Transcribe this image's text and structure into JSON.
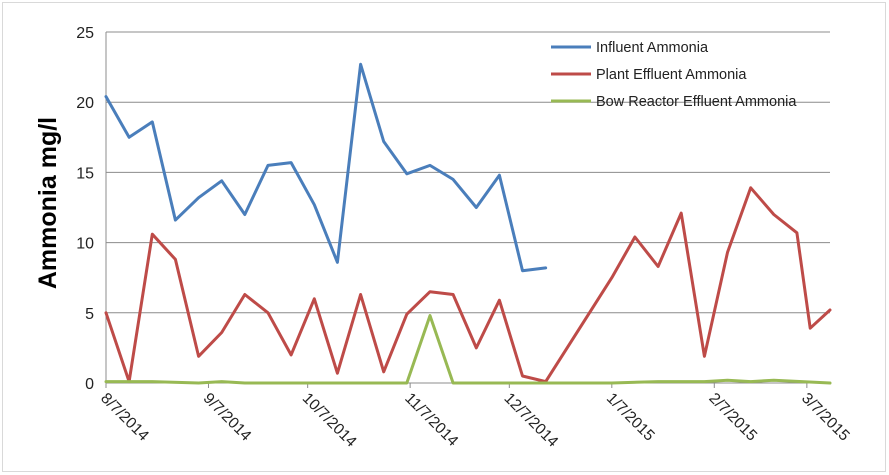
{
  "chart_data": {
    "type": "line",
    "ylabel": "Ammonia mg/l",
    "xlabel": "",
    "ylim": [
      0,
      25
    ],
    "y_ticks": [
      0,
      5,
      10,
      15,
      20,
      25
    ],
    "x_range": [
      "2014-08-07",
      "2015-03-14"
    ],
    "x_tick_dates": [
      "2014-08-07",
      "2014-09-07",
      "2014-10-07",
      "2014-11-07",
      "2014-12-07",
      "2015-01-07",
      "2015-02-07",
      "2015-03-07"
    ],
    "x_tick_labels": [
      "8/7/2014",
      "9/7/2014",
      "10/7/2014",
      "11/7/2014",
      "12/7/2014",
      "1/7/2015",
      "2/7/2015",
      "3/7/2015"
    ],
    "grid": "horizontal",
    "legend_position": "top-right",
    "series": [
      {
        "name": "Influent Ammonia",
        "color": "#4a7ebb",
        "points": [
          [
            "2014-08-07",
            20.4
          ],
          [
            "2014-08-14",
            17.5
          ],
          [
            "2014-08-21",
            18.6
          ],
          [
            "2014-08-28",
            11.6
          ],
          [
            "2014-09-04",
            13.2
          ],
          [
            "2014-09-11",
            14.4
          ],
          [
            "2014-09-18",
            12.0
          ],
          [
            "2014-09-25",
            15.5
          ],
          [
            "2014-10-02",
            15.7
          ],
          [
            "2014-10-09",
            12.7
          ],
          [
            "2014-10-16",
            8.6
          ],
          [
            "2014-10-23",
            22.7
          ],
          [
            "2014-10-30",
            17.2
          ],
          [
            "2014-11-06",
            14.9
          ],
          [
            "2014-11-13",
            15.5
          ],
          [
            "2014-11-20",
            14.5
          ],
          [
            "2014-11-27",
            12.5
          ],
          [
            "2014-12-04",
            14.8
          ],
          [
            "2014-12-11",
            8.0
          ],
          [
            "2014-12-18",
            8.2
          ]
        ]
      },
      {
        "name": "Plant Effluent Ammonia",
        "color": "#be4b48",
        "points": [
          [
            "2014-08-07",
            5.0
          ],
          [
            "2014-08-14",
            0.1
          ],
          [
            "2014-08-21",
            10.6
          ],
          [
            "2014-08-28",
            8.8
          ],
          [
            "2014-09-04",
            1.9
          ],
          [
            "2014-09-11",
            3.6
          ],
          [
            "2014-09-18",
            6.3
          ],
          [
            "2014-09-25",
            5.0
          ],
          [
            "2014-10-02",
            2.0
          ],
          [
            "2014-10-09",
            6.0
          ],
          [
            "2014-10-16",
            0.7
          ],
          [
            "2014-10-23",
            6.3
          ],
          [
            "2014-10-30",
            0.8
          ],
          [
            "2014-11-06",
            4.9
          ],
          [
            "2014-11-13",
            6.5
          ],
          [
            "2014-11-20",
            6.3
          ],
          [
            "2014-11-27",
            2.5
          ],
          [
            "2014-12-04",
            5.9
          ],
          [
            "2014-12-11",
            0.5
          ],
          [
            "2014-12-18",
            0.1
          ],
          [
            "2015-01-07",
            7.5
          ],
          [
            "2015-01-14",
            10.4
          ],
          [
            "2015-01-21",
            8.3
          ],
          [
            "2015-01-28",
            12.1
          ],
          [
            "2015-02-04",
            1.9
          ],
          [
            "2015-02-11",
            9.3
          ],
          [
            "2015-02-18",
            13.9
          ],
          [
            "2015-02-25",
            12.0
          ],
          [
            "2015-03-04",
            10.7
          ],
          [
            "2015-03-08",
            3.9
          ],
          [
            "2015-03-14",
            5.2
          ]
        ]
      },
      {
        "name": "Bow Reactor Effluent Ammonia",
        "color": "#98b954",
        "points": [
          [
            "2014-08-07",
            0.1
          ],
          [
            "2014-08-21",
            0.1
          ],
          [
            "2014-09-04",
            0.0
          ],
          [
            "2014-09-11",
            0.1
          ],
          [
            "2014-09-18",
            0.0
          ],
          [
            "2014-10-09",
            0.0
          ],
          [
            "2014-10-30",
            0.0
          ],
          [
            "2014-11-06",
            0.0
          ],
          [
            "2014-11-13",
            4.8
          ],
          [
            "2014-11-20",
            0.0
          ],
          [
            "2014-12-18",
            0.0
          ],
          [
            "2015-01-07",
            0.0
          ],
          [
            "2015-01-21",
            0.1
          ],
          [
            "2015-02-04",
            0.1
          ],
          [
            "2015-02-11",
            0.2
          ],
          [
            "2015-02-18",
            0.1
          ],
          [
            "2015-02-25",
            0.2
          ],
          [
            "2015-03-14",
            0.0
          ]
        ]
      }
    ]
  }
}
